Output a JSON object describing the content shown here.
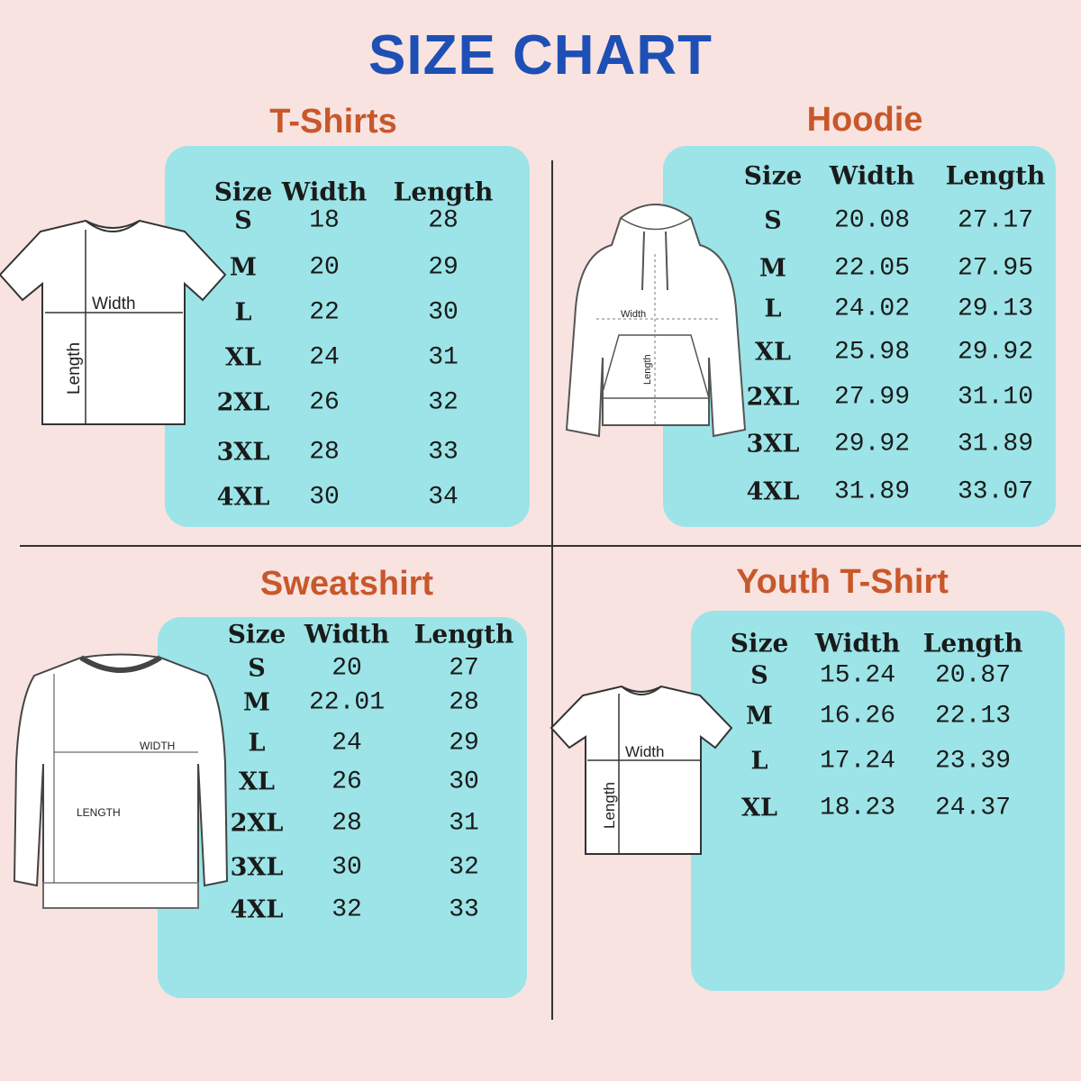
{
  "title": "SIZE CHART",
  "colors": {
    "title": "#1d4fb5",
    "section_title": "#c8582a",
    "panel": "#9ce4e7",
    "background": "#f8e3e1"
  },
  "sections": [
    {
      "name": "T-Shirts",
      "illustration": "tshirt",
      "labels": {
        "width": "Width",
        "length": "Length"
      },
      "headers": [
        "Size",
        "Width",
        "Length"
      ],
      "rows": [
        [
          "S",
          "18",
          "28"
        ],
        [
          "M",
          "20",
          "29"
        ],
        [
          "L",
          "22",
          "30"
        ],
        [
          "XL",
          "24",
          "31"
        ],
        [
          "2XL",
          "26",
          "32"
        ],
        [
          "3XL",
          "28",
          "33"
        ],
        [
          "4XL",
          "30",
          "34"
        ]
      ]
    },
    {
      "name": "Hoodie",
      "illustration": "hoodie",
      "labels": {
        "width": "Width",
        "length": "Length"
      },
      "headers": [
        "Size",
        "Width",
        "Length"
      ],
      "rows": [
        [
          "S",
          "20.08",
          "27.17"
        ],
        [
          "M",
          "22.05",
          "27.95"
        ],
        [
          "L",
          "24.02",
          "29.13"
        ],
        [
          "XL",
          "25.98",
          "29.92"
        ],
        [
          "2XL",
          "27.99",
          "31.10"
        ],
        [
          "3XL",
          "29.92",
          "31.89"
        ],
        [
          "4XL",
          "31.89",
          "33.07"
        ]
      ]
    },
    {
      "name": "Sweatshirt",
      "illustration": "sweatshirt",
      "labels": {
        "width": "WIDTH",
        "length": "LENGTH"
      },
      "headers": [
        "Size",
        "Width",
        "Length"
      ],
      "rows": [
        [
          "S",
          "20",
          "27"
        ],
        [
          "M",
          "22.01",
          "28"
        ],
        [
          "L",
          "24",
          "29"
        ],
        [
          "XL",
          "26",
          "30"
        ],
        [
          "2XL",
          "28",
          "31"
        ],
        [
          "3XL",
          "30",
          "32"
        ],
        [
          "4XL",
          "32",
          "33"
        ]
      ]
    },
    {
      "name": "Youth T-Shirt",
      "illustration": "tshirt",
      "labels": {
        "width": "Width",
        "length": "Length"
      },
      "headers": [
        "Size",
        "Width",
        "Length"
      ],
      "rows": [
        [
          "S",
          "15.24",
          "20.87"
        ],
        [
          "M",
          "16.26",
          "22.13"
        ],
        [
          "L",
          "17.24",
          "23.39"
        ],
        [
          "XL",
          "18.23",
          "24.37"
        ]
      ]
    }
  ]
}
